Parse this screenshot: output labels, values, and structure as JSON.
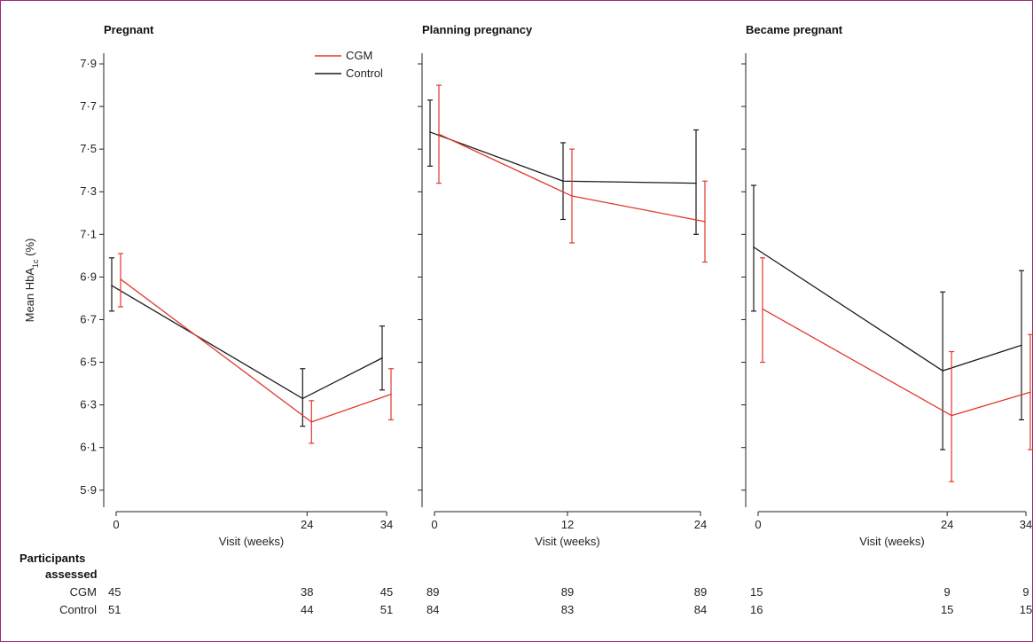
{
  "colors": {
    "cgm": "#e03a2f",
    "control": "#1a1a1a",
    "frame": "#9c2a7a"
  },
  "ylabel_prefix": "Mean HbA",
  "ylabel_sub": "1c",
  "ylabel_suffix": " (%)",
  "xlabel": "Visit (weeks)",
  "legend": {
    "cgm": "CGM",
    "control": "Control"
  },
  "table": {
    "heading_line1": "Participants",
    "heading_line2": "assessed",
    "row_labels": [
      "CGM",
      "Control"
    ]
  },
  "chart_data": [
    {
      "type": "line",
      "title": "Pregnant",
      "x_ticks": [
        0,
        24,
        34
      ],
      "xlim": [
        -2,
        35
      ],
      "ylim": [
        5.82,
        7.95
      ],
      "y_ticks": [
        "5·9",
        "6·1",
        "6·3",
        "6·5",
        "6·7",
        "6·9",
        "7·1",
        "7·3",
        "7·5",
        "7·7",
        "7·9"
      ],
      "series": [
        {
          "name": "CGM",
          "x": [
            0,
            24,
            34
          ],
          "y": [
            6.89,
            6.22,
            6.35
          ],
          "ci_low": [
            6.76,
            6.12,
            6.23
          ],
          "ci_high": [
            7.01,
            6.32,
            6.47
          ]
        },
        {
          "name": "Control",
          "x": [
            0,
            24,
            34
          ],
          "y": [
            6.86,
            6.33,
            6.52
          ],
          "ci_low": [
            6.74,
            6.2,
            6.37
          ],
          "ci_high": [
            6.99,
            6.47,
            6.67
          ]
        }
      ],
      "participants": {
        "CGM": [
          45,
          38,
          45
        ],
        "Control": [
          51,
          44,
          51
        ]
      }
    },
    {
      "type": "line",
      "title": "Planning pregnancy",
      "x_ticks": [
        0,
        12,
        24
      ],
      "xlim": [
        -1,
        25
      ],
      "ylim": [
        5.82,
        7.95
      ],
      "y_ticks": [],
      "series": [
        {
          "name": "CGM",
          "x": [
            0,
            12,
            24
          ],
          "y": [
            7.57,
            7.28,
            7.16
          ],
          "ci_low": [
            7.34,
            7.06,
            6.97
          ],
          "ci_high": [
            7.8,
            7.5,
            7.35
          ]
        },
        {
          "name": "Control",
          "x": [
            0,
            12,
            24
          ],
          "y": [
            7.58,
            7.35,
            7.34
          ],
          "ci_low": [
            7.42,
            7.17,
            7.1
          ],
          "ci_high": [
            7.73,
            7.53,
            7.59
          ]
        }
      ],
      "participants": {
        "CGM": [
          89,
          89,
          89
        ],
        "Control": [
          84,
          83,
          84
        ]
      }
    },
    {
      "type": "line",
      "title": "Became pregnant",
      "x_ticks": [
        0,
        24,
        34
      ],
      "xlim": [
        -2,
        35
      ],
      "ylim": [
        5.82,
        7.95
      ],
      "y_ticks": [],
      "series": [
        {
          "name": "CGM",
          "x": [
            0,
            24,
            34
          ],
          "y": [
            6.75,
            6.25,
            6.36
          ],
          "ci_low": [
            6.5,
            5.94,
            6.09
          ],
          "ci_high": [
            6.99,
            6.55,
            6.63
          ]
        },
        {
          "name": "Control",
          "x": [
            0,
            24,
            34
          ],
          "y": [
            7.04,
            6.46,
            6.58
          ],
          "ci_low": [
            6.74,
            6.09,
            6.23
          ],
          "ci_high": [
            7.33,
            6.83,
            6.93
          ]
        }
      ],
      "participants": {
        "CGM": [
          15,
          9,
          9
        ],
        "Control": [
          16,
          15,
          15
        ]
      }
    }
  ]
}
